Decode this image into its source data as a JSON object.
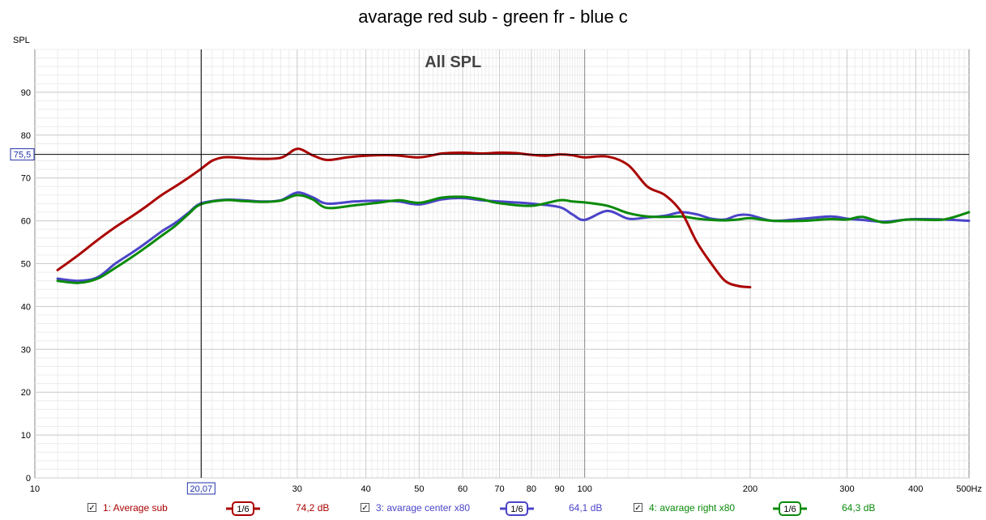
{
  "title": "avarage red sub - green fr - blue c",
  "chart_data": {
    "type": "line",
    "title": "All SPL",
    "ylabel": "SPL",
    "xunit": "Hz",
    "xscale": "log",
    "xlim": [
      10,
      500
    ],
    "ylim": [
      0,
      100
    ],
    "yticks": [
      0,
      10,
      20,
      30,
      40,
      50,
      60,
      70,
      80,
      90
    ],
    "xticks": [
      10,
      30,
      40,
      50,
      60,
      70,
      80,
      90,
      100,
      200,
      300,
      400,
      500
    ],
    "cursor": {
      "x_label": "20,07",
      "x": 20.07,
      "y_label": "75,5",
      "y": 75.5
    },
    "grid": true,
    "series": [
      {
        "name": "1: Average sub",
        "color": "#aa0000",
        "smoothing": "1/6",
        "value_label": "74,2 dB",
        "x": [
          11,
          12,
          13,
          14,
          15,
          16,
          17,
          18,
          19,
          20,
          21,
          22,
          23,
          25,
          28,
          30,
          32,
          34,
          37,
          40,
          45,
          50,
          55,
          60,
          65,
          70,
          75,
          80,
          85,
          90,
          95,
          100,
          110,
          120,
          130,
          140,
          150,
          160,
          170,
          180,
          190,
          200
        ],
        "y": [
          48.5,
          52,
          55.5,
          58.5,
          61,
          63.5,
          66,
          68,
          70,
          72,
          74,
          74.8,
          74.8,
          74.5,
          74.7,
          76.8,
          75.3,
          74.2,
          74.8,
          75.2,
          75.3,
          74.8,
          75.7,
          75.9,
          75.7,
          75.9,
          75.8,
          75.4,
          75.2,
          75.5,
          75.3,
          74.8,
          75,
          73,
          68,
          66,
          62,
          55,
          50,
          46,
          44.8,
          44.5
        ]
      },
      {
        "name": "3: avarage center x80",
        "color": "#4b44c8",
        "smoothing": "1/6",
        "value_label": "64,1 dB",
        "x": [
          11,
          12,
          13,
          14,
          15,
          16,
          17,
          18,
          19,
          20,
          22,
          24,
          26,
          28,
          30,
          32,
          34,
          38,
          42,
          46,
          50,
          55,
          60,
          65,
          70,
          80,
          90,
          95,
          100,
          110,
          120,
          130,
          140,
          150,
          160,
          170,
          180,
          190,
          200,
          220,
          250,
          280,
          300,
          320,
          350,
          380,
          400,
          450,
          500
        ],
        "y": [
          46.5,
          46,
          46.8,
          50,
          52.5,
          55,
          57.5,
          59.5,
          61.8,
          64,
          64.9,
          64.8,
          64.5,
          64.8,
          66.6,
          65.5,
          64,
          64.5,
          64.7,
          64.5,
          63.8,
          65,
          65.3,
          64.8,
          64.5,
          64,
          63.2,
          61.5,
          60.2,
          62.3,
          60.5,
          60.8,
          61.2,
          62,
          61.5,
          60.5,
          60.3,
          61.3,
          61.3,
          60,
          60.5,
          61,
          60.5,
          60.2,
          59.8,
          60.2,
          60.4,
          60.3,
          60
        ]
      },
      {
        "name": "4: avarage right x80",
        "color": "#0a8a0a",
        "smoothing": "1/6",
        "value_label": "64,3 dB",
        "x": [
          11,
          12,
          13,
          14,
          15,
          16,
          17,
          18,
          19,
          20,
          22,
          24,
          26,
          28,
          30,
          32,
          34,
          38,
          42,
          46,
          50,
          55,
          60,
          65,
          70,
          80,
          90,
          95,
          100,
          110,
          120,
          130,
          140,
          150,
          160,
          170,
          180,
          190,
          200,
          220,
          250,
          280,
          300,
          320,
          350,
          380,
          400,
          450,
          500
        ],
        "y": [
          46,
          45.5,
          46.5,
          49,
          51.5,
          54,
          56.5,
          58.8,
          61.5,
          63.8,
          64.8,
          64.6,
          64.4,
          64.7,
          66,
          65,
          63,
          63.6,
          64.2,
          64.8,
          64.2,
          65.4,
          65.6,
          65,
          64.1,
          63.5,
          64.8,
          64.5,
          64.3,
          63.5,
          61.8,
          61,
          60.9,
          61,
          60.5,
          60.2,
          60.1,
          60.3,
          60.6,
          60,
          60,
          60.4,
          60.3,
          60.9,
          59.6,
          60.2,
          60.3,
          60.3,
          62
        ]
      }
    ]
  }
}
